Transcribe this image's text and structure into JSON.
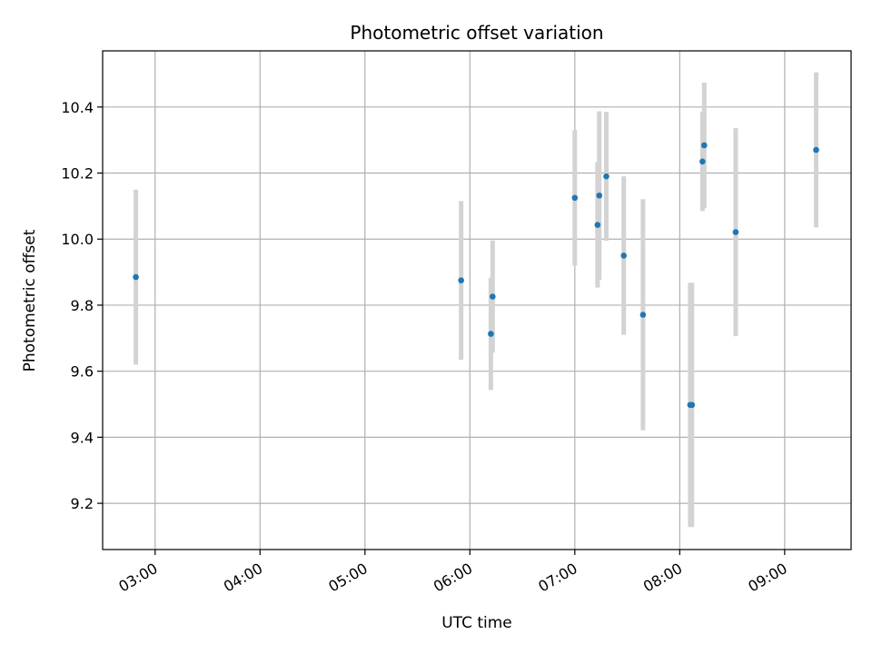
{
  "chart_data": {
    "type": "scatter",
    "title": "Photometric offset variation",
    "xlabel": "UTC time",
    "ylabel": "Photometric offset",
    "x_ticks": [
      "03:00",
      "04:00",
      "05:00",
      "06:00",
      "07:00",
      "08:00",
      "09:00"
    ],
    "x_tick_hours": [
      3,
      4,
      5,
      6,
      7,
      8,
      9
    ],
    "xlim": [
      "02:30",
      "09:38"
    ],
    "y_ticks": [
      9.2,
      9.4,
      9.6,
      9.8,
      10.0,
      10.2,
      10.4
    ],
    "ylim": [
      9.06,
      10.57
    ],
    "grid": true,
    "colors": {
      "point": "#1f77b4",
      "errorbar": "#d3d3d3",
      "grid": "#b0b0b0"
    },
    "series": [
      {
        "points": [
          {
            "x": "02:49",
            "y": 9.885,
            "err": 0.265
          },
          {
            "x": "05:55",
            "y": 9.875,
            "err": 0.24
          },
          {
            "x": "06:12",
            "y": 9.713,
            "err": 0.17
          },
          {
            "x": "06:13",
            "y": 9.826,
            "err": 0.17
          },
          {
            "x": "07:00",
            "y": 10.125,
            "err": 0.205
          },
          {
            "x": "07:13",
            "y": 10.043,
            "err": 0.19
          },
          {
            "x": "07:14",
            "y": 10.132,
            "err": 0.255
          },
          {
            "x": "07:18",
            "y": 10.19,
            "err": 0.195
          },
          {
            "x": "07:28",
            "y": 9.95,
            "err": 0.24
          },
          {
            "x": "07:39",
            "y": 9.771,
            "err": 0.35
          },
          {
            "x": "08:06",
            "y": 9.498,
            "err": 0.37
          },
          {
            "x": "08:07",
            "y": 9.498,
            "err": 0.37
          },
          {
            "x": "08:13",
            "y": 10.235,
            "err": 0.15
          },
          {
            "x": "08:14",
            "y": 10.284,
            "err": 0.19
          },
          {
            "x": "08:32",
            "y": 10.021,
            "err": 0.315
          },
          {
            "x": "09:18",
            "y": 10.27,
            "err": 0.235
          }
        ]
      }
    ]
  }
}
